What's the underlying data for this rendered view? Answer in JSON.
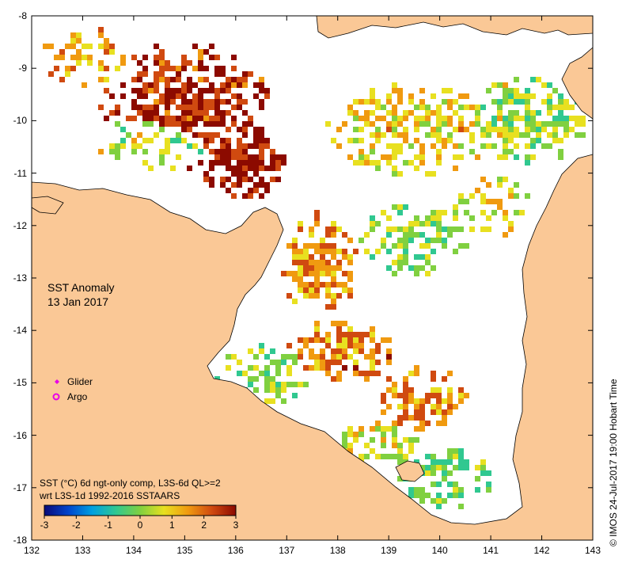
{
  "title": "SST Anomaly",
  "date": "13 Jan 2017",
  "colors": {
    "land": "#FAC896",
    "water": "#FFFFFF",
    "coast": "#000000",
    "glider": "#E800E8",
    "argo": "#E800E8"
  },
  "axes": {
    "lon_ticks": [
      "132",
      "133",
      "134",
      "135",
      "136",
      "137",
      "138",
      "139",
      "140",
      "141",
      "142",
      "143"
    ],
    "lat_ticks": [
      "-8",
      "-9",
      "-10",
      "-11",
      "-12",
      "-13",
      "-14",
      "-15",
      "-16",
      "-17",
      "-18"
    ]
  },
  "legend": {
    "glider_label": "Glider",
    "argo_label": "Argo",
    "glider_icon": "diamond-icon",
    "argo_icon": "ring-icon"
  },
  "colorbar": {
    "line1": "SST (°C) 6d ngt-only comp, L3S-6d QL>=2",
    "line2": "wrt L3S-1d 1992-2016 SSTAARS",
    "ticks": [
      "-3",
      "-2",
      "-1",
      "0",
      "1",
      "2",
      "3"
    ],
    "range": [
      -3,
      3
    ],
    "stops": [
      "#0A0A78",
      "#0044CC",
      "#00A0E0",
      "#30C890",
      "#80D040",
      "#E8E020",
      "#F09A10",
      "#D04A10",
      "#8C0A00"
    ]
  },
  "credit": "© IMOS 24-Jul-2017 19:00 Hobart Time"
}
